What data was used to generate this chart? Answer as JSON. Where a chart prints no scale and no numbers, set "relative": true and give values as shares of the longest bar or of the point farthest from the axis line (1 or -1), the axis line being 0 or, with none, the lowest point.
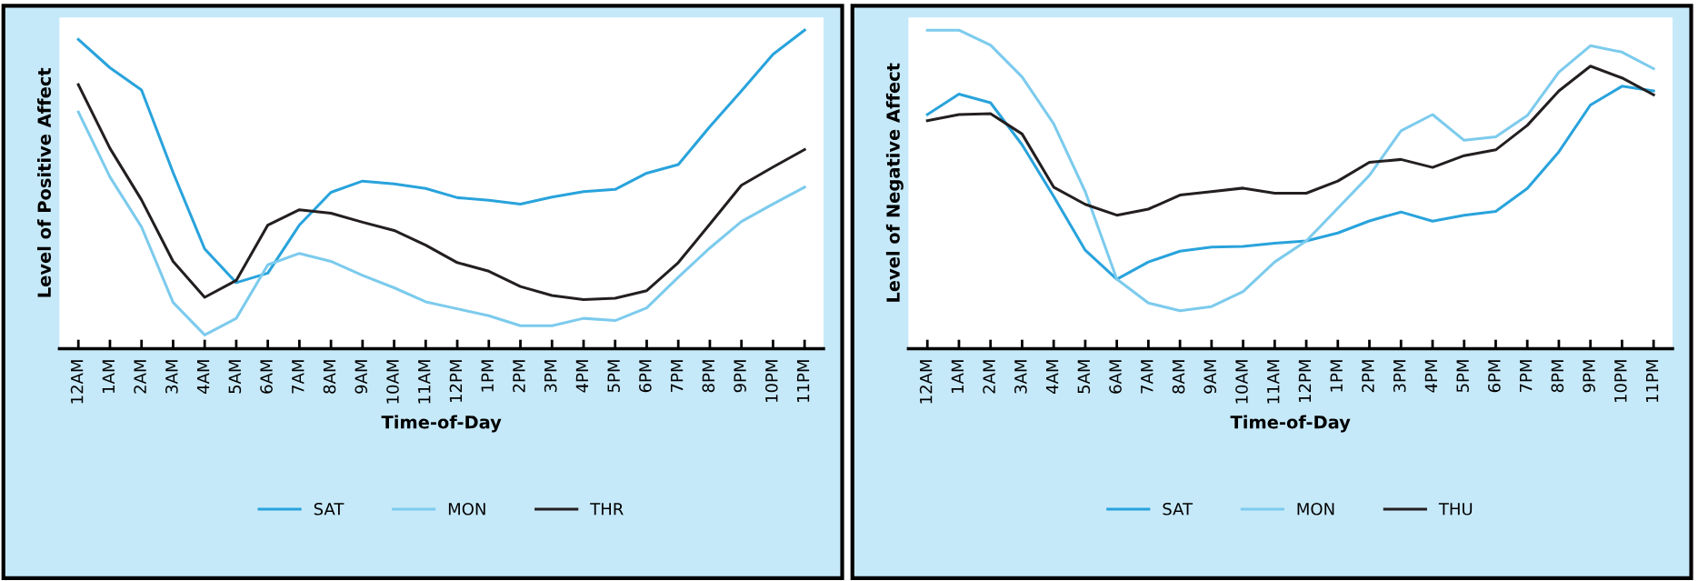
{
  "chart_data": [
    {
      "type": "line",
      "relative": true,
      "ylabel": "Level of Positive Affect",
      "xlabel": "Time-of-Day",
      "legend": "bottom",
      "grid": false,
      "categories": [
        "12AM",
        "1AM",
        "2AM",
        "3AM",
        "4AM",
        "5AM",
        "6AM",
        "7AM",
        "8AM",
        "9AM",
        "10AM",
        "11AM",
        "12PM",
        "1PM",
        "2PM",
        "3PM",
        "4PM",
        "5PM",
        "6PM",
        "7PM",
        "8PM",
        "9PM",
        "10PM",
        "11PM"
      ],
      "series": [
        {
          "name": "SAT",
          "color": "#29a3dc",
          "values": [
            0.971,
            0.882,
            0.812,
            0.553,
            0.313,
            0.207,
            0.237,
            0.388,
            0.491,
            0.526,
            0.517,
            0.503,
            0.474,
            0.466,
            0.454,
            0.476,
            0.493,
            0.5,
            0.551,
            0.578,
            0.697,
            0.809,
            0.924,
            1
          ]
        },
        {
          "name": "MON",
          "color": "#7ccbed",
          "values": [
            0.743,
            0.539,
            0.382,
            0.145,
            0.043,
            0.095,
            0.263,
            0.299,
            0.274,
            0.23,
            0.191,
            0.147,
            0.125,
            0.103,
            0.072,
            0.072,
            0.095,
            0.088,
            0.128,
            0.224,
            0.316,
            0.399,
            0.454,
            0.507
          ]
        },
        {
          "name": "THR",
          "color": "#231f20",
          "values": [
            0.829,
            0.629,
            0.467,
            0.274,
            0.161,
            0.214,
            0.388,
            0.436,
            0.425,
            0.397,
            0.371,
            0.325,
            0.27,
            0.243,
            0.195,
            0.167,
            0.154,
            0.158,
            0.182,
            0.27,
            0.391,
            0.513,
            0.57,
            0.625
          ]
        }
      ]
    },
    {
      "type": "line",
      "relative": true,
      "ylabel": "Level of Negative Affect",
      "xlabel": "Time-of-Day",
      "legend": "bottom",
      "grid": false,
      "categories": [
        "12AM",
        "1AM",
        "2AM",
        "3AM",
        "4AM",
        "5AM",
        "6AM",
        "7AM",
        "8AM",
        "9AM",
        "10AM",
        "11AM",
        "12PM",
        "1PM",
        "2PM",
        "3PM",
        "4PM",
        "5PM",
        "6PM",
        "7PM",
        "8PM",
        "9PM",
        "10PM",
        "11PM"
      ],
      "series": [
        {
          "name": "SAT",
          "color": "#29a3dc",
          "values": [
            0.735,
            0.799,
            0.772,
            0.64,
            0.478,
            0.309,
            0.218,
            0.272,
            0.306,
            0.319,
            0.321,
            0.331,
            0.338,
            0.363,
            0.401,
            0.429,
            0.4,
            0.419,
            0.431,
            0.503,
            0.618,
            0.765,
            0.824,
            0.809
          ]
        },
        {
          "name": "MON",
          "color": "#7ccbed",
          "values": [
            1,
            1,
            0.953,
            0.853,
            0.706,
            0.493,
            0.218,
            0.143,
            0.119,
            0.132,
            0.179,
            0.272,
            0.338,
            0.441,
            0.544,
            0.684,
            0.735,
            0.654,
            0.665,
            0.732,
            0.868,
            0.951,
            0.931,
            0.879
          ]
        },
        {
          "name": "THU",
          "color": "#231f20",
          "values": [
            0.716,
            0.735,
            0.738,
            0.674,
            0.507,
            0.453,
            0.419,
            0.438,
            0.482,
            0.493,
            0.504,
            0.488,
            0.488,
            0.526,
            0.585,
            0.594,
            0.569,
            0.606,
            0.624,
            0.701,
            0.809,
            0.887,
            0.85,
            0.797
          ]
        }
      ]
    }
  ]
}
